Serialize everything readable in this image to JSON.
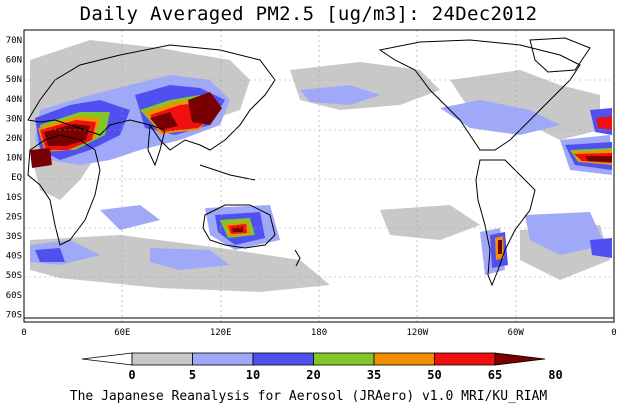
{
  "title": "Daily Averaged PM2.5 [ug/m3]: 24Dec2012",
  "credit": "The Japanese Reanalysis for Aerosol (JRAero) v1.0 MRI/KU_RIAM",
  "lat_labels": [
    "70N",
    "60N",
    "50N",
    "40N",
    "30N",
    "20N",
    "10N",
    "EQ",
    "10S",
    "20S",
    "30S",
    "40S",
    "50S",
    "60S",
    "70S"
  ],
  "lon_labels": [
    "0",
    "60E",
    "120E",
    "180",
    "120W",
    "60W",
    "0"
  ],
  "colorbar": {
    "ticks": [
      "0",
      "5",
      "10",
      "20",
      "35",
      "50",
      "65",
      "80"
    ],
    "colors": [
      "#ffffff",
      "#c8c8c8",
      "#a0a8f8",
      "#5050f0",
      "#80c828",
      "#f09000",
      "#f01010",
      "#780000"
    ]
  },
  "colors": {
    "background": "#ffffff",
    "coastline": "#000000",
    "grid": "#a0a0a0"
  }
}
